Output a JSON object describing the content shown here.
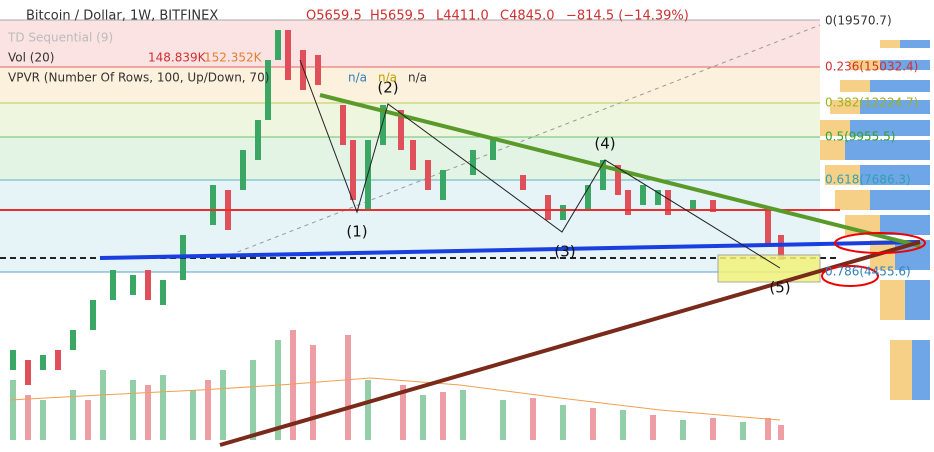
{
  "header": {
    "title": "Bitcoin / Dollar, 1W, BITFINEX",
    "open": "O5659.5",
    "high": "H5659.5",
    "low": "L4411.0",
    "close": "C4845.0",
    "change": "−814.5 (−14.39%)"
  },
  "indicators": {
    "td": "TD Sequential (9)",
    "vol": "Vol (20)",
    "vol_value": "148.839K",
    "vol_ma": "152.352K",
    "vpvr": "VPVR (Number Of Rows, 100, Up/Down, 70)",
    "na": [
      "n/a",
      "n/a",
      "n/a"
    ]
  },
  "fib_levels": [
    "0(19570.7)",
    "0.236(15032.4)",
    "0.382(12224.7)",
    "0.5(9955.5)",
    "0.618(7686.3)",
    "0.786(4455.6)"
  ],
  "waves": [
    "(1)",
    "(2)",
    "(3)",
    "(4)",
    "(5)"
  ]
}
